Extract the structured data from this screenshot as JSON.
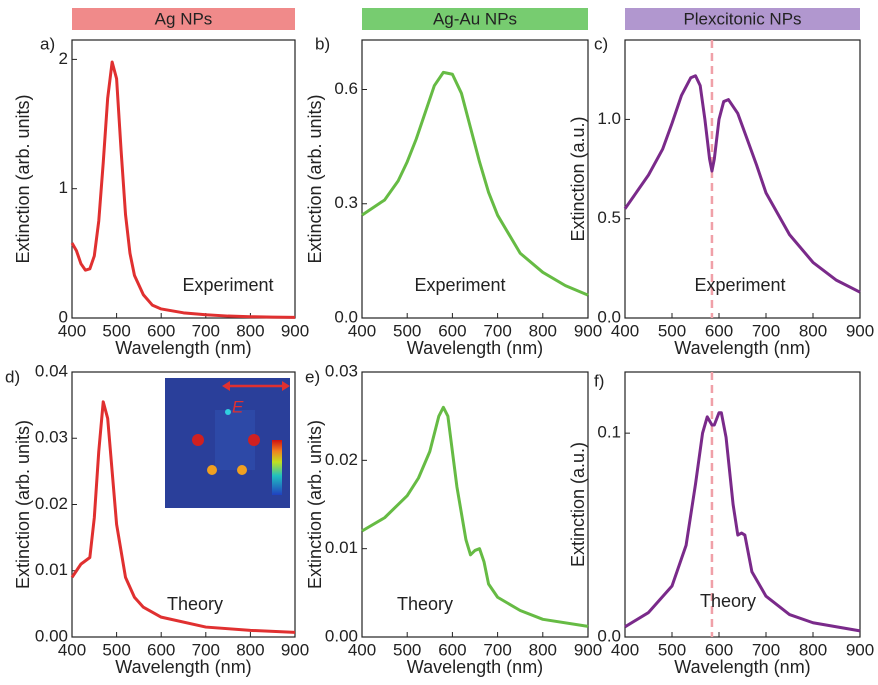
{
  "chart_data": [
    {
      "type": "line",
      "panel": "a)",
      "header": "Ag NPs",
      "header_color": "#f08a8a",
      "annotation": "Experiment",
      "xlabel": "Wavelength (nm)",
      "ylabel": "Extinction (arb. units)",
      "xlim": [
        400,
        900
      ],
      "xticks": [
        400,
        500,
        600,
        700,
        800,
        900
      ],
      "ylim": [
        0,
        2.15
      ],
      "yticks": [
        0,
        1,
        2
      ],
      "x": [
        400,
        410,
        420,
        430,
        440,
        450,
        460,
        470,
        480,
        490,
        500,
        510,
        520,
        530,
        540,
        560,
        580,
        600,
        650,
        700,
        750,
        800,
        850,
        900
      ],
      "series": [
        {
          "color": "#e03030",
          "values": [
            0.58,
            0.52,
            0.42,
            0.37,
            0.38,
            0.48,
            0.75,
            1.2,
            1.7,
            1.98,
            1.85,
            1.3,
            0.8,
            0.5,
            0.33,
            0.18,
            0.1,
            0.07,
            0.04,
            0.025,
            0.015,
            0.01,
            0.007,
            0.005
          ]
        }
      ]
    },
    {
      "type": "line",
      "panel": "b)",
      "header": "Ag-Au NPs",
      "header_color": "#77cc70",
      "annotation": "Experiment",
      "xlabel": "Wavelength (nm)",
      "ylabel": "Extinction (arb. units)",
      "xlim": [
        400,
        900
      ],
      "xticks": [
        400,
        500,
        600,
        700,
        800,
        900
      ],
      "ylim": [
        0,
        0.73
      ],
      "yticks": [
        {
          "value": 0,
          "label": "0.0"
        },
        0.3,
        0.6
      ],
      "x": [
        400,
        450,
        480,
        500,
        520,
        540,
        560,
        580,
        600,
        620,
        640,
        660,
        680,
        700,
        750,
        800,
        850,
        900
      ],
      "series": [
        {
          "color": "#66bb44",
          "values": [
            0.27,
            0.31,
            0.36,
            0.41,
            0.47,
            0.54,
            0.61,
            0.645,
            0.64,
            0.59,
            0.5,
            0.41,
            0.33,
            0.27,
            0.17,
            0.12,
            0.085,
            0.06
          ]
        }
      ]
    },
    {
      "type": "line",
      "panel": "c)",
      "header": "Plexcitonic NPs",
      "header_color": "#b197cf",
      "annotation": "Experiment",
      "xlabel": "Wavelength (nm)",
      "ylabel": "Extinction (a.u.)",
      "xlim": [
        400,
        900
      ],
      "xticks": [
        400,
        500,
        600,
        700,
        800,
        900
      ],
      "ylim": [
        0,
        1.4
      ],
      "yticks": [
        {
          "value": 0,
          "label": "0.0"
        },
        0.5,
        {
          "value": 1,
          "label": "1.0"
        }
      ],
      "reference_line": 585,
      "reference_color": "#f0a0a8",
      "x": [
        400,
        450,
        480,
        500,
        520,
        540,
        550,
        560,
        570,
        580,
        585,
        590,
        600,
        610,
        620,
        640,
        660,
        680,
        700,
        750,
        800,
        850,
        900
      ],
      "series": [
        {
          "color": "#7a2a8a",
          "values": [
            0.55,
            0.72,
            0.85,
            0.98,
            1.12,
            1.21,
            1.22,
            1.17,
            1.0,
            0.8,
            0.74,
            0.8,
            1.0,
            1.09,
            1.1,
            1.03,
            0.9,
            0.77,
            0.63,
            0.42,
            0.28,
            0.19,
            0.13
          ]
        }
      ]
    },
    {
      "type": "line",
      "panel": "d)",
      "annotation": "Theory",
      "inset_label": "E",
      "xlabel": "Wavelength (nm)",
      "ylabel": "Extinction (arb. units)",
      "xlim": [
        400,
        900
      ],
      "xticks": [
        400,
        500,
        600,
        700,
        800,
        900
      ],
      "ylim": [
        0,
        0.04
      ],
      "yticks": [
        {
          "value": 0,
          "label": "0.00"
        },
        0.01,
        0.02,
        0.03,
        {
          "value": 0.04,
          "label": "0.04"
        }
      ],
      "x": [
        400,
        420,
        440,
        450,
        460,
        470,
        480,
        490,
        500,
        520,
        540,
        560,
        600,
        700,
        800,
        900
      ],
      "series": [
        {
          "color": "#e03030",
          "values": [
            0.009,
            0.011,
            0.012,
            0.018,
            0.028,
            0.0355,
            0.033,
            0.025,
            0.017,
            0.009,
            0.006,
            0.0045,
            0.003,
            0.0015,
            0.001,
            0.0007
          ]
        }
      ]
    },
    {
      "type": "line",
      "panel": "e)",
      "annotation": "Theory",
      "xlabel": "Wavelength (nm)",
      "ylabel": "Extinction (arb. units)",
      "xlim": [
        400,
        900
      ],
      "xticks": [
        400,
        500,
        600,
        700,
        800,
        900
      ],
      "ylim": [
        0,
        0.03
      ],
      "yticks": [
        {
          "value": 0,
          "label": "0.00"
        },
        0.01,
        0.02,
        0.03
      ],
      "x": [
        400,
        450,
        500,
        525,
        550,
        570,
        580,
        590,
        610,
        630,
        640,
        650,
        660,
        670,
        680,
        700,
        750,
        800,
        900
      ],
      "series": [
        {
          "color": "#66bb44",
          "values": [
            0.012,
            0.0135,
            0.016,
            0.018,
            0.021,
            0.025,
            0.026,
            0.025,
            0.017,
            0.011,
            0.0093,
            0.0098,
            0.01,
            0.0085,
            0.006,
            0.0045,
            0.003,
            0.002,
            0.0012
          ]
        }
      ]
    },
    {
      "type": "line",
      "panel": "f)",
      "annotation": "Theory",
      "xlabel": "Wavelength (nm)",
      "ylabel": "Extinction (a.u.)",
      "xlim": [
        400,
        900
      ],
      "xticks": [
        400,
        500,
        600,
        700,
        800,
        900
      ],
      "ylim": [
        0,
        0.13
      ],
      "yticks": [
        {
          "value": 0,
          "label": "0.0"
        },
        0.1
      ],
      "reference_line": 585,
      "reference_color": "#f0a0a8",
      "x": [
        400,
        450,
        500,
        530,
        550,
        565,
        575,
        585,
        590,
        600,
        605,
        615,
        630,
        640,
        648,
        655,
        670,
        700,
        750,
        800,
        900
      ],
      "series": [
        {
          "color": "#7a2a8a",
          "values": [
            0.005,
            0.012,
            0.025,
            0.045,
            0.075,
            0.1,
            0.108,
            0.104,
            0.104,
            0.11,
            0.11,
            0.098,
            0.065,
            0.05,
            0.051,
            0.05,
            0.032,
            0.02,
            0.011,
            0.007,
            0.003
          ]
        }
      ]
    }
  ]
}
